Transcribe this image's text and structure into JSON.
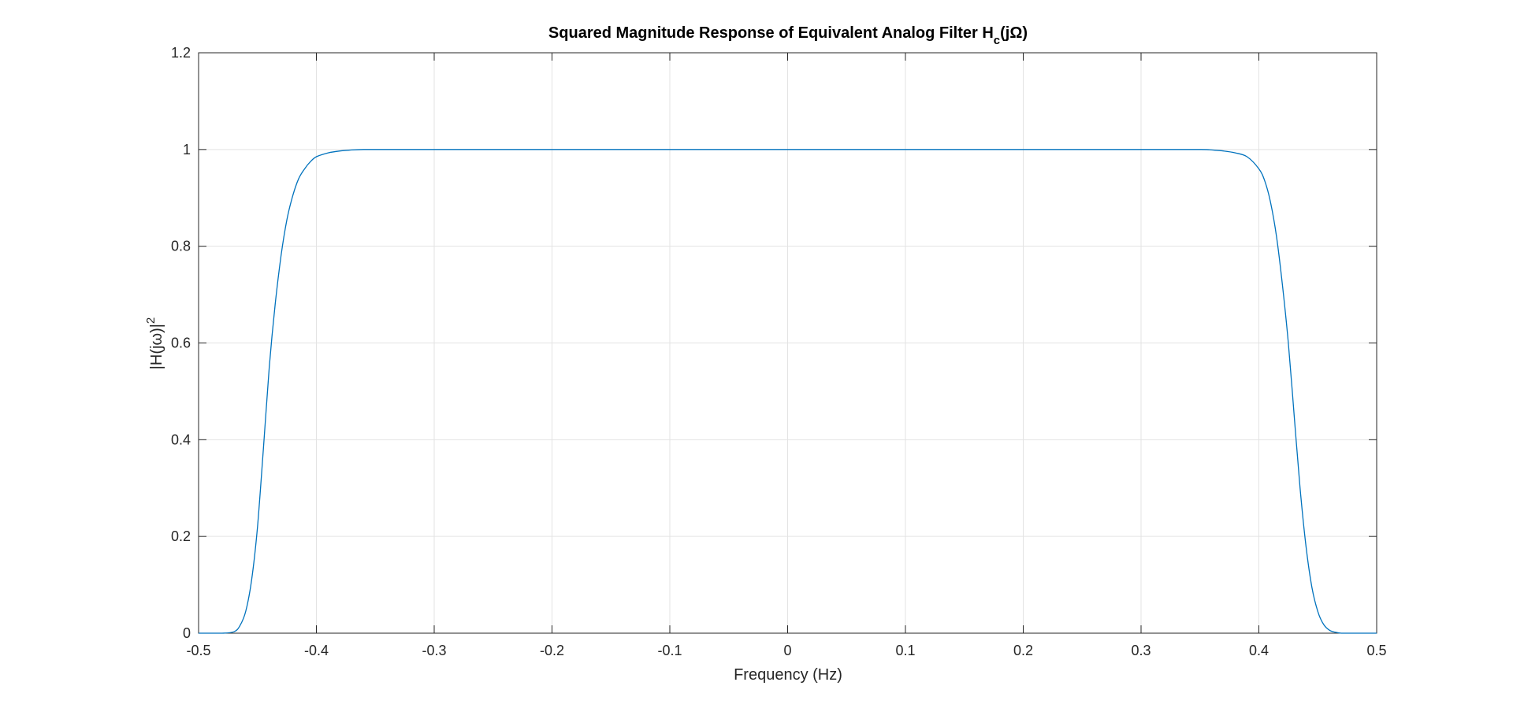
{
  "chart_data": {
    "type": "line",
    "title": "Squared Magnitude Response of Equivalent Analog Filter H",
    "title_subscript": "c",
    "title_suffix": "(jΩ)",
    "xlabel": "Frequency (Hz)",
    "ylabel": "|H(jω)|",
    "ylabel_superscript": "2",
    "xlim": [
      -0.5,
      0.5
    ],
    "ylim": [
      0,
      1.2
    ],
    "xticks": [
      -0.5,
      -0.4,
      -0.3,
      -0.2,
      -0.1,
      0,
      0.1,
      0.2,
      0.3,
      0.4,
      0.5
    ],
    "xtick_labels": [
      "-0.5",
      "-0.4",
      "-0.3",
      "-0.2",
      "-0.1",
      "0",
      "0.1",
      "0.2",
      "0.3",
      "0.4",
      "0.5"
    ],
    "yticks": [
      0,
      0.2,
      0.4,
      0.6,
      0.8,
      1,
      1.2
    ],
    "ytick_labels": [
      "0",
      "0.2",
      "0.4",
      "0.6",
      "0.8",
      "1",
      "1.2"
    ],
    "grid": true,
    "legend": "none",
    "series": [
      {
        "color": "#0072BD",
        "x": [
          -0.5,
          -0.48,
          -0.47,
          -0.465,
          -0.46,
          -0.455,
          -0.45,
          -0.445,
          -0.44,
          -0.435,
          -0.43,
          -0.425,
          -0.42,
          -0.415,
          -0.41,
          -0.405,
          -0.4,
          -0.39,
          -0.38,
          -0.37,
          -0.36,
          -0.35,
          -0.3,
          -0.2,
          -0.1,
          0,
          0.1,
          0.2,
          0.3,
          0.35,
          0.36,
          0.37,
          0.38,
          0.39,
          0.4,
          0.405,
          0.41,
          0.415,
          0.42,
          0.425,
          0.43,
          0.435,
          0.44,
          0.445,
          0.45,
          0.455,
          0.46,
          0.465,
          0.47,
          0.48,
          0.5
        ],
        "y": [
          0,
          0,
          0.003,
          0.015,
          0.045,
          0.11,
          0.22,
          0.38,
          0.55,
          0.68,
          0.78,
          0.855,
          0.905,
          0.94,
          0.96,
          0.975,
          0.985,
          0.993,
          0.997,
          0.999,
          1,
          1,
          1,
          1,
          1,
          1,
          1,
          1,
          1,
          1,
          0.999,
          0.997,
          0.993,
          0.985,
          0.96,
          0.935,
          0.89,
          0.82,
          0.72,
          0.6,
          0.45,
          0.3,
          0.18,
          0.095,
          0.045,
          0.018,
          0.006,
          0.002,
          0,
          0,
          0
        ]
      }
    ]
  }
}
